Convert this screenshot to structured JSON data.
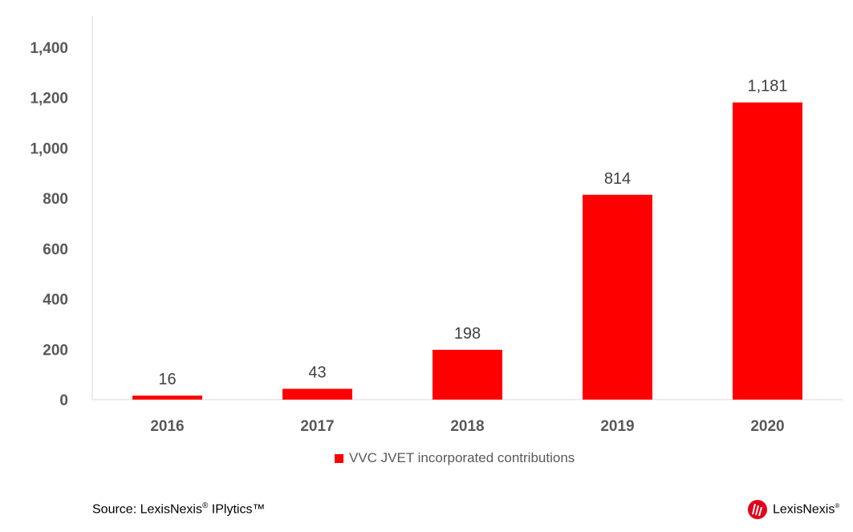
{
  "chart_data": {
    "type": "bar",
    "categories": [
      "2016",
      "2017",
      "2018",
      "2019",
      "2020"
    ],
    "series": [
      {
        "name": "VVC JVET incorporated contributions",
        "values": [
          16,
          43,
          198,
          814,
          1181
        ],
        "color": "#ff0000"
      }
    ],
    "data_labels": [
      "16",
      "43",
      "198",
      "814",
      "1,181"
    ],
    "y_ticks": [
      "0",
      "200",
      "400",
      "600",
      "800",
      "1,000",
      "1,200",
      "1,400"
    ],
    "ylim": [
      0,
      1400
    ],
    "grid": false,
    "legend_position": "bottom"
  },
  "legend": {
    "label": "VVC JVET incorporated contributions"
  },
  "source": {
    "prefix": "Source: LexisNexis",
    "reg": "®",
    "product": "IPlytics™"
  },
  "logo": {
    "text": "LexisNexis",
    "mark": "®",
    "icon": "lexisnexis-logo-icon",
    "color": "#e3001b"
  }
}
